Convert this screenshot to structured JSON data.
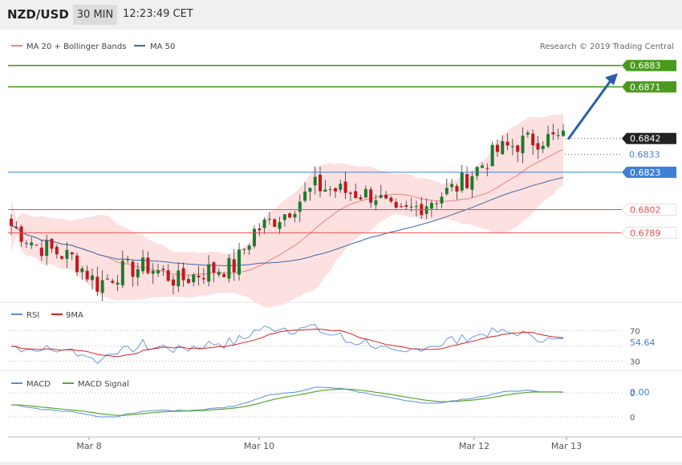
{
  "header": {
    "pair": "NZD/USD",
    "timeframe": "30 MIN",
    "time": "12:23:49 CET"
  },
  "copyright": "Research © 2019 Trading Central",
  "colors": {
    "up": "#1a7d2c",
    "down": "#c4161c",
    "ma20": "#ee8080",
    "band": "#fde0e0",
    "ma50": "#3a6aa8",
    "resistance": "#4a9a1e",
    "support": "#e84b4b",
    "pivot": "#3f7fd6",
    "rsi": "#5a8fd6",
    "rsi_ma": "#d42020",
    "macd": "#5a8fd6",
    "signal": "#5aa832"
  },
  "legend_main": [
    {
      "label": "MA 20 + Bollinger Bands",
      "color": "#ee8080"
    },
    {
      "label": "MA 50",
      "color": "#3a6aa8"
    }
  ],
  "legend_rsi": [
    {
      "label": "RSI",
      "color": "#5a8fd6"
    },
    {
      "label": "9MA",
      "color": "#d42020"
    }
  ],
  "legend_macd": [
    {
      "label": "MACD",
      "color": "#5a8fd6"
    },
    {
      "label": "MACD Signal",
      "color": "#5aa832"
    }
  ],
  "x_labels": [
    "Mar 8",
    "Mar 10",
    "Mar 12",
    "Mar 13"
  ],
  "chart_data": {
    "type": "candlestick",
    "price_range": [
      0.6745,
      0.69
    ],
    "levels": [
      {
        "value": "0.6883",
        "kind": "resistance"
      },
      {
        "value": "0.6871",
        "kind": "resistance"
      },
      {
        "value": "0.6842",
        "kind": "current"
      },
      {
        "value": "0.6833",
        "kind": "dotted"
      },
      {
        "value": "0.6823",
        "kind": "pivot"
      },
      {
        "value": "0.6802",
        "kind": "support"
      },
      {
        "value": "0.6789",
        "kind": "support"
      }
    ],
    "forecast": {
      "from": 0.6842,
      "to": 0.688
    },
    "rsi": {
      "levels": [
        "70",
        "30"
      ],
      "value": "54.64",
      "range": [
        20,
        80
      ]
    },
    "macd": {
      "levels": [
        "0",
        "0"
      ],
      "value": "0.00"
    }
  }
}
